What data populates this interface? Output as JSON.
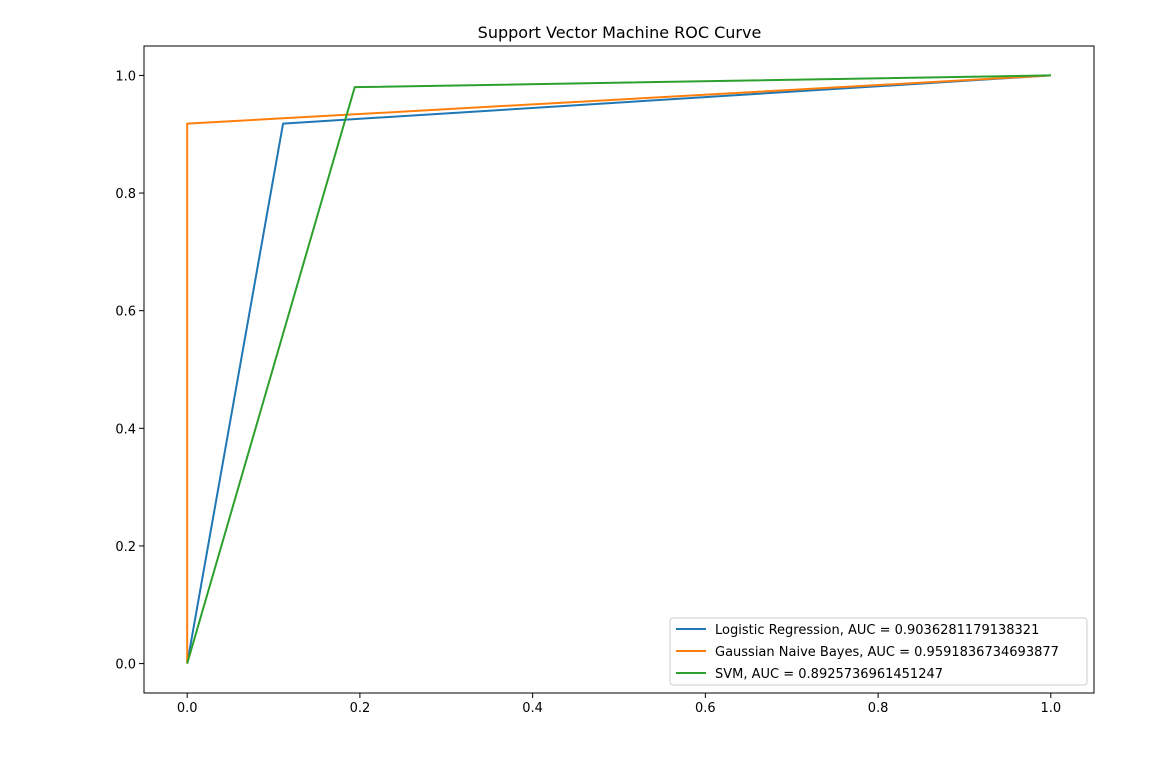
{
  "chart_data": {
    "type": "line",
    "title": "Support Vector Machine ROC Curve",
    "xlabel": "",
    "ylabel": "",
    "xlim": [
      -0.05,
      1.05
    ],
    "ylim": [
      -0.05,
      1.05
    ],
    "x_ticks": [
      0.0,
      0.2,
      0.4,
      0.6,
      0.8,
      1.0
    ],
    "y_ticks": [
      0.0,
      0.2,
      0.4,
      0.6,
      0.8,
      1.0
    ],
    "x_tick_labels": [
      "0.0",
      "0.2",
      "0.4",
      "0.6",
      "0.8",
      "1.0"
    ],
    "y_tick_labels": [
      "0.0",
      "0.2",
      "0.4",
      "0.6",
      "0.8",
      "1.0"
    ],
    "grid": false,
    "legend_position": "lower right",
    "series": [
      {
        "name": "Logistic Regression, AUC = 0.9036281179138321",
        "color": "#1f77b4",
        "x": [
          0.0,
          0.111,
          1.0
        ],
        "y": [
          0.0,
          0.918,
          1.0
        ]
      },
      {
        "name": "Gaussian Naive Bayes, AUC = 0.9591836734693877",
        "color": "#ff7f0e",
        "x": [
          0.0,
          0.0,
          1.0
        ],
        "y": [
          0.0,
          0.918,
          1.0
        ]
      },
      {
        "name": "SVM, AUC = 0.8925736961451247",
        "color": "#2ca02c",
        "x": [
          0.0,
          0.194,
          1.0
        ],
        "y": [
          0.0,
          0.98,
          1.0
        ]
      }
    ]
  }
}
